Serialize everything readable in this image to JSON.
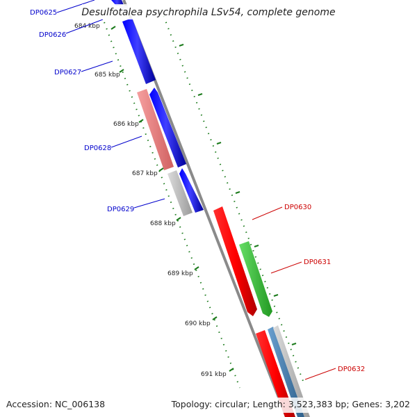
{
  "title": "Desulfotalea psychrophila LSv54, complete genome",
  "footer": {
    "accession": "Accession: NC_006138",
    "summary": "Topology: circular; Length: 3,523,383 bp; Genes: 3,202"
  },
  "ticks": [
    {
      "label": "684 kbp"
    },
    {
      "label": "685 kbp"
    },
    {
      "label": "686 kbp"
    },
    {
      "label": "687 kbp"
    },
    {
      "label": "688 kbp"
    },
    {
      "label": "689 kbp"
    },
    {
      "label": "690 kbp"
    },
    {
      "label": "691 kbp"
    }
  ],
  "gene_labels": [
    {
      "label": "DP0625",
      "strand": "left"
    },
    {
      "label": "DP0626",
      "strand": "left"
    },
    {
      "label": "DP0627",
      "strand": "left"
    },
    {
      "label": "DP0628",
      "strand": "left"
    },
    {
      "label": "DP0629",
      "strand": "left"
    },
    {
      "label": "DP0630",
      "strand": "right"
    },
    {
      "label": "DP0631",
      "strand": "right"
    },
    {
      "label": "DP0632",
      "strand": "right"
    }
  ],
  "colors": {
    "backbone": "#8a8a8a",
    "reverse_cds": "#0000ee",
    "forward_cds": "#ff0000",
    "rrna": "#f08080",
    "trna": "#c0c0c0",
    "green_feature": "#44cc44",
    "steelblue_feature": "#4682b4",
    "tick": "#1a7a1a",
    "blue_label": "#0000cc",
    "red_label": "#cc0000"
  }
}
